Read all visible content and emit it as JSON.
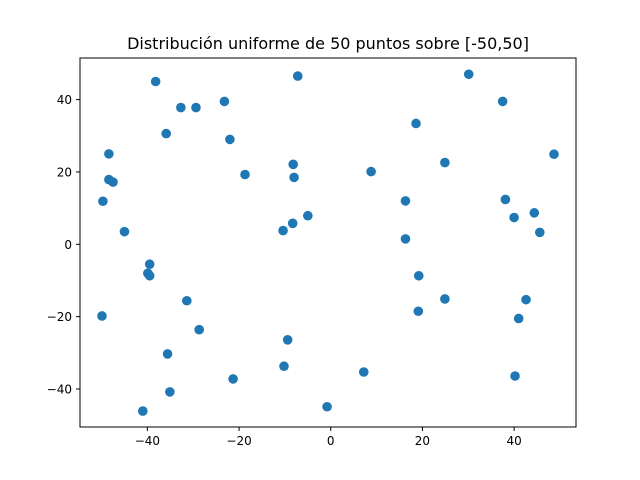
{
  "chart_data": {
    "type": "scatter",
    "title": "Distribución uniforme de 50 puntos sobre [-50,50]",
    "xlabel": "",
    "ylabel": "",
    "xlim": [
      -54.7,
      53.5
    ],
    "ylim": [
      -50.5,
      51.5
    ],
    "xticks": [
      -40,
      -20,
      0,
      20,
      40
    ],
    "yticks": [
      -40,
      -20,
      0,
      20,
      40
    ],
    "grid": false,
    "marker_color": "#1f77b4",
    "points": [
      {
        "x": -38.2,
        "y": 45.0
      },
      {
        "x": -7.2,
        "y": 46.5
      },
      {
        "x": 30.1,
        "y": 47.0
      },
      {
        "x": -32.7,
        "y": 37.8
      },
      {
        "x": -29.4,
        "y": 37.8
      },
      {
        "x": -23.2,
        "y": 39.5
      },
      {
        "x": 37.5,
        "y": 39.5
      },
      {
        "x": 18.6,
        "y": 33.4
      },
      {
        "x": -35.9,
        "y": 30.6
      },
      {
        "x": -22.0,
        "y": 29.0
      },
      {
        "x": -48.4,
        "y": 25.0
      },
      {
        "x": 48.7,
        "y": 24.9
      },
      {
        "x": -8.2,
        "y": 22.1
      },
      {
        "x": 24.9,
        "y": 22.6
      },
      {
        "x": 8.8,
        "y": 20.1
      },
      {
        "x": -18.7,
        "y": 19.3
      },
      {
        "x": -8.0,
        "y": 18.5
      },
      {
        "x": -48.4,
        "y": 17.9
      },
      {
        "x": -47.5,
        "y": 17.2
      },
      {
        "x": -49.7,
        "y": 11.9
      },
      {
        "x": 16.3,
        "y": 12.0
      },
      {
        "x": 38.1,
        "y": 12.4
      },
      {
        "x": 44.4,
        "y": 8.7
      },
      {
        "x": 40.0,
        "y": 7.4
      },
      {
        "x": -5.0,
        "y": 7.9
      },
      {
        "x": -8.3,
        "y": 5.8
      },
      {
        "x": -10.4,
        "y": 3.8
      },
      {
        "x": -45.0,
        "y": 3.5
      },
      {
        "x": 45.6,
        "y": 3.3
      },
      {
        "x": 16.3,
        "y": 1.5
      },
      {
        "x": -39.5,
        "y": -5.5
      },
      {
        "x": -39.9,
        "y": -8.0
      },
      {
        "x": -39.5,
        "y": -8.7
      },
      {
        "x": 19.2,
        "y": -8.7
      },
      {
        "x": 24.9,
        "y": -15.1
      },
      {
        "x": -31.4,
        "y": -15.6
      },
      {
        "x": 42.6,
        "y": -15.3
      },
      {
        "x": 19.1,
        "y": -18.5
      },
      {
        "x": -49.9,
        "y": -19.8
      },
      {
        "x": 41.0,
        "y": -20.5
      },
      {
        "x": -28.7,
        "y": -23.6
      },
      {
        "x": -9.4,
        "y": -26.4
      },
      {
        "x": -35.6,
        "y": -30.3
      },
      {
        "x": -10.2,
        "y": -33.7
      },
      {
        "x": 7.2,
        "y": -35.3
      },
      {
        "x": -21.3,
        "y": -37.2
      },
      {
        "x": 40.2,
        "y": -36.4
      },
      {
        "x": -35.1,
        "y": -40.8
      },
      {
        "x": -0.8,
        "y": -44.9
      },
      {
        "x": -41.0,
        "y": -46.1
      }
    ]
  }
}
